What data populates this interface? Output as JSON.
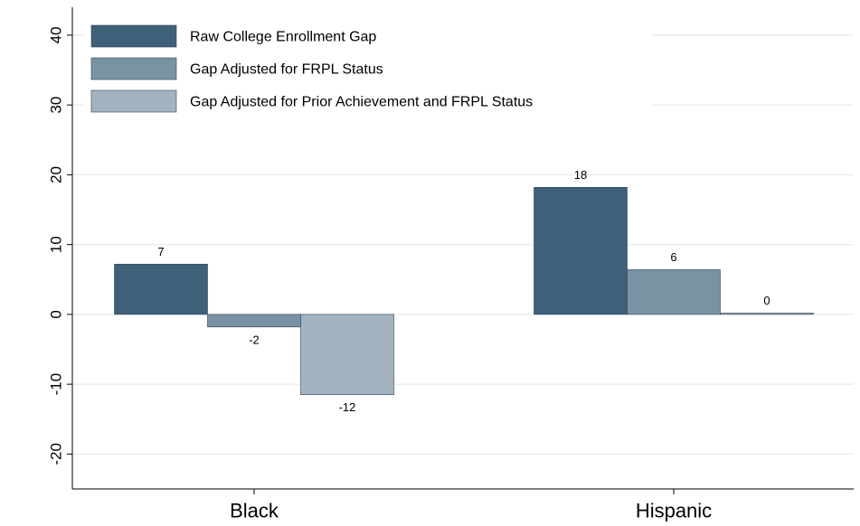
{
  "chart_data": {
    "type": "bar",
    "title": "",
    "xlabel": "",
    "ylabel": "",
    "ylim": [
      -25,
      44
    ],
    "yticks": [
      -20,
      -10,
      0,
      10,
      20,
      30,
      40
    ],
    "grid": true,
    "legend_position": "top-left",
    "categories": [
      "Black",
      "Hispanic"
    ],
    "series": [
      {
        "name": "Raw College Enrollment Gap",
        "color": "#3e6079",
        "values": [
          7.2,
          18.2
        ],
        "labels": [
          "7",
          "18"
        ]
      },
      {
        "name": "Gap Adjusted for FRPL Status",
        "color": "#7a93a4",
        "values": [
          -1.8,
          6.4
        ],
        "labels": [
          "-2",
          "6"
        ]
      },
      {
        "name": "Gap Adjusted for Prior Achievement and FRPL Status",
        "color": "#a3b3c0",
        "values": [
          -11.5,
          0.2
        ],
        "labels": [
          "-12",
          "0"
        ]
      }
    ]
  }
}
